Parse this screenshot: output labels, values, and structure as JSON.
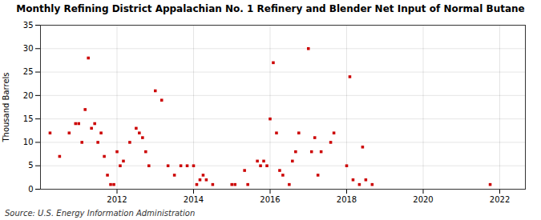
{
  "chart_data": {
    "type": "scatter",
    "title": "Monthly Refining District Appalachian No. 1 Refinery and Blender Net Input of Normal Butane",
    "ylabel": "Thousand Barrels",
    "source": "Source: U.S. Energy Information Administration",
    "color": "#cc0000",
    "marker": "square",
    "grid": true,
    "xlim": [
      2010.0,
      2022.67
    ],
    "ylim": [
      0,
      35
    ],
    "xticks": [
      2012,
      2014,
      2016,
      2018,
      2020,
      2022
    ],
    "yticks": [
      0,
      5,
      10,
      15,
      20,
      25,
      30,
      35
    ],
    "x": [
      2010.25,
      2010.5,
      2010.75,
      2010.917,
      2011.0,
      2011.083,
      2011.167,
      2011.25,
      2011.333,
      2011.417,
      2011.5,
      2011.583,
      2011.667,
      2011.75,
      2011.833,
      2011.917,
      2012.0,
      2012.083,
      2012.167,
      2012.333,
      2012.5,
      2012.583,
      2012.667,
      2012.75,
      2012.833,
      2013.0,
      2013.167,
      2013.333,
      2013.5,
      2013.667,
      2013.833,
      2014.0,
      2014.083,
      2014.167,
      2014.25,
      2014.333,
      2014.5,
      2015.0,
      2015.083,
      2015.333,
      2015.417,
      2015.667,
      2015.75,
      2015.833,
      2015.917,
      2016.0,
      2016.083,
      2016.167,
      2016.25,
      2016.333,
      2016.5,
      2016.583,
      2016.667,
      2016.75,
      2017.0,
      2017.083,
      2017.167,
      2017.25,
      2017.333,
      2017.583,
      2017.667,
      2018.0,
      2018.083,
      2018.167,
      2018.333,
      2018.417,
      2018.5,
      2018.667,
      2021.75
    ],
    "values": [
      12,
      7,
      12,
      14,
      14,
      10,
      17,
      28,
      13,
      14,
      10,
      12,
      7,
      3,
      1,
      1,
      8,
      5,
      6,
      10,
      13,
      12,
      11,
      8,
      5,
      21,
      19,
      5,
      3,
      5,
      5,
      5,
      1,
      2,
      3,
      2,
      1,
      1,
      1,
      4,
      1,
      6,
      5,
      6,
      5,
      15,
      27,
      12,
      4,
      3,
      1,
      6,
      8,
      12,
      30,
      8,
      11,
      3,
      8,
      10,
      12,
      5,
      24,
      2,
      1,
      9,
      2,
      1,
      1
    ]
  }
}
